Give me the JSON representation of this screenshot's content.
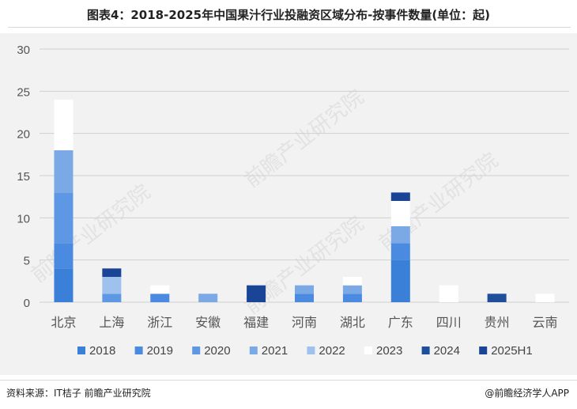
{
  "title": "图表4：2018-2025年中国果汁行业投融资区域分布-按事件数量(单位：起)",
  "source": "资料来源：IT桔子 前瞻产业研究院",
  "brand": "@前瞻经济学人APP",
  "watermark": "前瞻产业研究院",
  "chart_data": {
    "type": "bar",
    "stacked": true,
    "categories": [
      "北京",
      "上海",
      "浙江",
      "安徽",
      "福建",
      "河南",
      "湖北",
      "广东",
      "四川",
      "贵州",
      "云南"
    ],
    "ylim": [
      0,
      30
    ],
    "yticks": [
      0,
      5,
      10,
      15,
      20,
      25,
      30
    ],
    "grid": true,
    "legend_position": "bottom",
    "series": [
      {
        "name": "2018",
        "color": "#3a7fd8",
        "values": [
          4,
          0,
          0,
          0,
          0,
          0,
          0,
          5,
          0,
          0,
          0
        ]
      },
      {
        "name": "2019",
        "color": "#4a8ae0",
        "values": [
          3,
          0,
          1,
          0,
          0,
          1,
          1,
          2,
          0,
          0,
          0
        ]
      },
      {
        "name": "2020",
        "color": "#5e98e4",
        "values": [
          6,
          1,
          0,
          0,
          0,
          0,
          0,
          0,
          0,
          0,
          0
        ]
      },
      {
        "name": "2021",
        "color": "#7ba9e6",
        "values": [
          5,
          0,
          0,
          1,
          0,
          1,
          1,
          2,
          0,
          0,
          0
        ]
      },
      {
        "name": "2022",
        "color": "#9fc1ee",
        "values": [
          0,
          2,
          0,
          0,
          0,
          0,
          0,
          0,
          0,
          0,
          0
        ]
      },
      {
        "name": "2023",
        "color": "#ffffff",
        "values": [
          6,
          0,
          1,
          0,
          0,
          0,
          1,
          3,
          2,
          0,
          1
        ]
      },
      {
        "name": "2024",
        "color": "#1f4e9a",
        "values": [
          0,
          0,
          0,
          0,
          0,
          0,
          0,
          0,
          0,
          1,
          0
        ]
      },
      {
        "name": "2025H1",
        "color": "#1a4596",
        "values": [
          0,
          1,
          0,
          0,
          2,
          0,
          0,
          1,
          0,
          0,
          0
        ]
      }
    ]
  }
}
